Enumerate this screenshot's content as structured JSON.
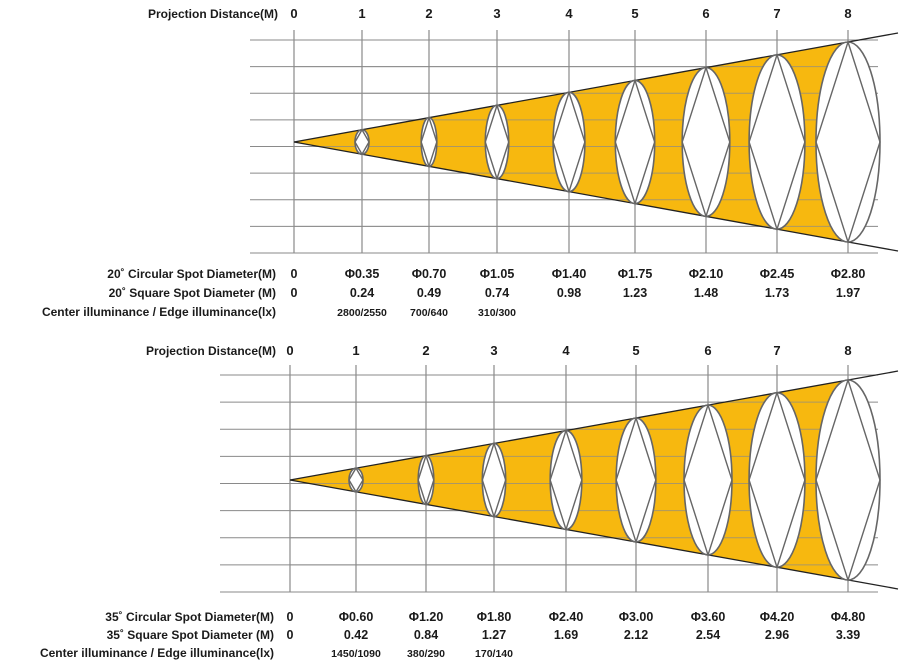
{
  "colors": {
    "beam": "#f7b80f",
    "grid": "#8a8a8a",
    "line": "#222222",
    "ellipse": "#ffffff"
  },
  "diagrams": [
    {
      "distance_label": "Projection Distance(M)",
      "ticks": [
        "0",
        "1",
        "2",
        "3",
        "4",
        "5",
        "6",
        "7",
        "8"
      ],
      "circular_label": "20˚ Circular Spot Diameter(M)",
      "circular_values": [
        "0",
        "Φ0.35",
        "Φ0.70",
        "Φ1.05",
        "Φ1.40",
        "Φ1.75",
        "Φ2.10",
        "Φ2.45",
        "Φ2.80"
      ],
      "square_label": "20˚ Square Spot Diameter (M)",
      "square_values": [
        "0",
        "0.24",
        "0.49",
        "0.74",
        "0.98",
        "1.23",
        "1.48",
        "1.73",
        "1.97"
      ],
      "lux_label": "Center illuminance / Edge illuminance(lx)",
      "lux_values": [
        "2800/2550",
        "700/640",
        "310/300"
      ]
    },
    {
      "distance_label": "Projection Distance(M)",
      "ticks": [
        "0",
        "1",
        "2",
        "3",
        "4",
        "5",
        "6",
        "7",
        "8"
      ],
      "circular_label": "35˚ Circular Spot Diameter(M)",
      "circular_values": [
        "0",
        "Φ0.60",
        "Φ1.20",
        "Φ1.80",
        "Φ2.40",
        "Φ3.00",
        "Φ3.60",
        "Φ4.20",
        "Φ4.80"
      ],
      "square_label": "35˚ Square Spot Diameter (M)",
      "square_values": [
        "0",
        "0.42",
        "0.84",
        "1.27",
        "1.69",
        "2.12",
        "2.54",
        "2.96",
        "3.39"
      ],
      "lux_label": "Center illuminance / Edge illuminance(lx)",
      "lux_values": [
        "1450/1090",
        "380/290",
        "170/140"
      ]
    }
  ]
}
